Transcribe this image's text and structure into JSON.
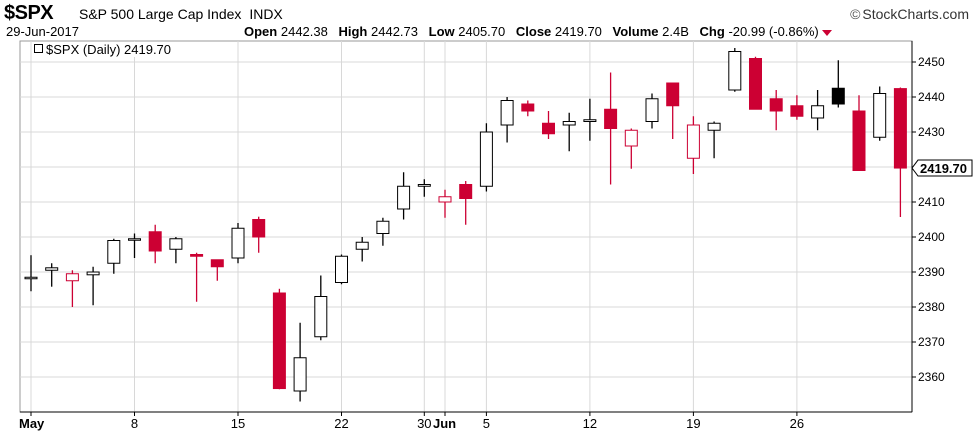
{
  "header": {
    "ticker": "$SPX",
    "name": "S&P 500 Large Cap Index",
    "exchange": "INDX",
    "brand": "StockCharts.com",
    "brand_symbol": "©",
    "date": "29-Jun-2017",
    "open_label": "Open",
    "open": "2442.38",
    "high_label": "High",
    "high": "2442.73",
    "low_label": "Low",
    "low": "2405.70",
    "close_label": "Close",
    "close": "2419.70",
    "volume_label": "Volume",
    "volume": "2.4B",
    "chg_label": "Chg",
    "chg": "-20.99 (-0.86%)"
  },
  "legend": {
    "text": "$SPX (Daily) 2419.70"
  },
  "colors": {
    "up": "#000000",
    "down": "#cc0033",
    "grid": "#d8d8d8",
    "axis": "#000000"
  },
  "chart_data": {
    "type": "candlestick",
    "ylim": [
      2350,
      2456
    ],
    "yticks": [
      2360,
      2370,
      2380,
      2390,
      2400,
      2410,
      2420,
      2430,
      2440,
      2450
    ],
    "last_value_label": "2419.70",
    "xlabels": [
      {
        "i": 0,
        "label": "May",
        "bold": true
      },
      {
        "i": 5,
        "label": "8"
      },
      {
        "i": 10,
        "label": "15"
      },
      {
        "i": 15,
        "label": "22"
      },
      {
        "i": 19,
        "label": "30"
      },
      {
        "i": 20,
        "label": "Jun",
        "bold": true
      },
      {
        "i": 22,
        "label": "5"
      },
      {
        "i": 27,
        "label": "12"
      },
      {
        "i": 32,
        "label": "19"
      },
      {
        "i": 37,
        "label": "26"
      }
    ],
    "candles": [
      {
        "o": 2388.5,
        "h": 2394.8,
        "l": 2384.5,
        "c": 2388.3,
        "style": "up"
      },
      {
        "o": 2390.5,
        "h": 2392.5,
        "l": 2385.8,
        "c": 2391.2,
        "style": "up"
      },
      {
        "o": 2389.5,
        "h": 2390.5,
        "l": 2380.0,
        "c": 2387.5,
        "style": "down-hollow"
      },
      {
        "o": 2389.2,
        "h": 2391.5,
        "l": 2380.5,
        "c": 2390.0,
        "style": "up"
      },
      {
        "o": 2392.5,
        "h": 2399.5,
        "l": 2389.5,
        "c": 2399.0,
        "style": "up"
      },
      {
        "o": 2399.5,
        "h": 2401.0,
        "l": 2394.0,
        "c": 2399.5,
        "style": "up"
      },
      {
        "o": 2401.5,
        "h": 2403.5,
        "l": 2392.5,
        "c": 2396.0,
        "style": "down"
      },
      {
        "o": 2396.5,
        "h": 2400.0,
        "l": 2392.5,
        "c": 2399.5,
        "style": "up"
      },
      {
        "o": 2395.0,
        "h": 2395.5,
        "l": 2381.5,
        "c": 2394.5,
        "style": "down"
      },
      {
        "o": 2393.5,
        "h": 2393.5,
        "l": 2387.5,
        "c": 2391.5,
        "style": "down"
      },
      {
        "o": 2394.0,
        "h": 2404.0,
        "l": 2392.5,
        "c": 2402.5,
        "style": "up"
      },
      {
        "o": 2405.0,
        "h": 2405.8,
        "l": 2395.5,
        "c": 2400.0,
        "style": "down"
      },
      {
        "o": 2384.0,
        "h": 2385.2,
        "l": 2356.5,
        "c": 2356.7,
        "style": "down"
      },
      {
        "o": 2356.0,
        "h": 2375.5,
        "l": 2353.0,
        "c": 2365.5,
        "style": "up"
      },
      {
        "o": 2371.5,
        "h": 2389.0,
        "l": 2370.5,
        "c": 2383.0,
        "style": "up"
      },
      {
        "o": 2387.0,
        "h": 2395.0,
        "l": 2386.5,
        "c": 2394.5,
        "style": "up"
      },
      {
        "o": 2396.5,
        "h": 2400.0,
        "l": 2393.0,
        "c": 2398.5,
        "style": "up"
      },
      {
        "o": 2401.0,
        "h": 2405.5,
        "l": 2397.5,
        "c": 2404.5,
        "style": "up"
      },
      {
        "o": 2408.0,
        "h": 2418.5,
        "l": 2405.0,
        "c": 2414.5,
        "style": "up"
      },
      {
        "o": 2414.5,
        "h": 2416.5,
        "l": 2411.5,
        "c": 2415.0,
        "style": "up"
      },
      {
        "o": 2411.5,
        "h": 2413.5,
        "l": 2405.5,
        "c": 2410.0,
        "style": "down-hollow"
      },
      {
        "o": 2415.0,
        "h": 2416.0,
        "l": 2403.5,
        "c": 2411.0,
        "style": "down"
      },
      {
        "o": 2414.5,
        "h": 2432.5,
        "l": 2413.0,
        "c": 2430.0,
        "style": "up"
      },
      {
        "o": 2432.0,
        "h": 2440.0,
        "l": 2427.0,
        "c": 2439.0,
        "style": "up"
      },
      {
        "o": 2438.0,
        "h": 2439.0,
        "l": 2434.5,
        "c": 2436.0,
        "style": "down"
      },
      {
        "o": 2432.5,
        "h": 2436.0,
        "l": 2428.0,
        "c": 2429.5,
        "style": "down"
      },
      {
        "o": 2432.0,
        "h": 2435.5,
        "l": 2424.5,
        "c": 2433.0,
        "style": "up"
      },
      {
        "o": 2433.0,
        "h": 2439.5,
        "l": 2427.5,
        "c": 2433.5,
        "style": "up"
      },
      {
        "o": 2436.5,
        "h": 2447.0,
        "l": 2415.0,
        "c": 2431.0,
        "style": "down"
      },
      {
        "o": 2430.5,
        "h": 2431.0,
        "l": 2419.5,
        "c": 2426.0,
        "style": "down-hollow"
      },
      {
        "o": 2433.0,
        "h": 2441.0,
        "l": 2431.0,
        "c": 2439.5,
        "style": "up"
      },
      {
        "o": 2444.0,
        "h": 2444.0,
        "l": 2428.0,
        "c": 2437.5,
        "style": "down"
      },
      {
        "o": 2422.5,
        "h": 2434.5,
        "l": 2418.0,
        "c": 2432.0,
        "style": "down-hollow"
      },
      {
        "o": 2430.5,
        "h": 2433.0,
        "l": 2422.5,
        "c": 2432.5,
        "style": "up"
      },
      {
        "o": 2442.0,
        "h": 2454.0,
        "l": 2441.5,
        "c": 2453.0,
        "style": "up"
      },
      {
        "o": 2451.0,
        "h": 2451.5,
        "l": 2437.0,
        "c": 2436.5,
        "style": "down"
      },
      {
        "o": 2439.5,
        "h": 2442.0,
        "l": 2430.5,
        "c": 2436.0,
        "style": "down"
      },
      {
        "o": 2437.5,
        "h": 2440.5,
        "l": 2433.5,
        "c": 2434.5,
        "style": "down"
      },
      {
        "o": 2434.0,
        "h": 2442.0,
        "l": 2430.5,
        "c": 2437.5,
        "style": "up"
      },
      {
        "o": 2438.0,
        "h": 2450.5,
        "l": 2437.0,
        "c": 2442.5,
        "style": "up-filled"
      },
      {
        "o": 2436.0,
        "h": 2440.5,
        "l": 2419.0,
        "c": 2419.0,
        "style": "down"
      },
      {
        "o": 2428.5,
        "h": 2443.0,
        "l": 2427.5,
        "c": 2441.0,
        "style": "up"
      },
      {
        "o": 2442.4,
        "h": 2442.7,
        "l": 2405.7,
        "c": 2419.7,
        "style": "down"
      }
    ]
  }
}
